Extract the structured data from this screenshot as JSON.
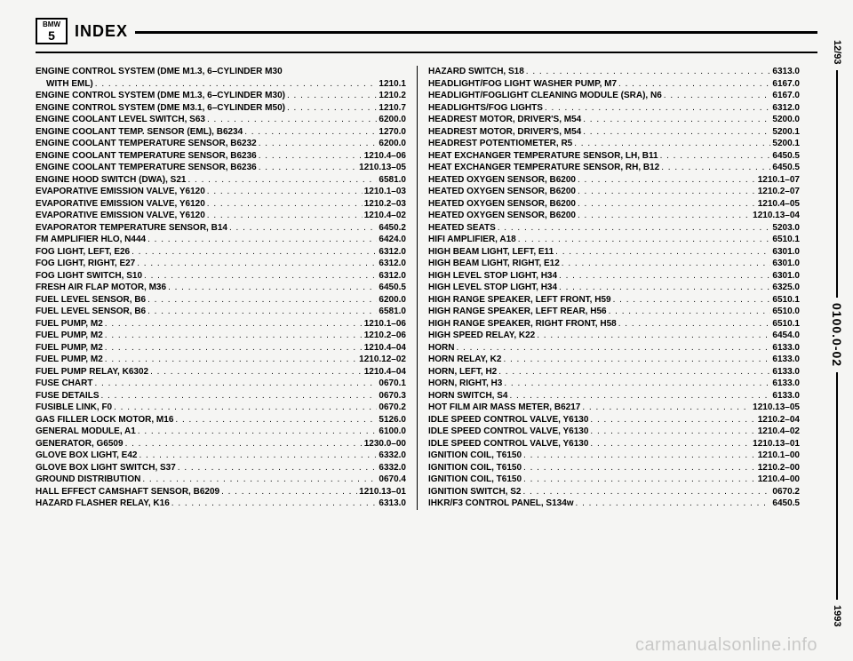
{
  "header": {
    "logo_top": "BMW",
    "logo_bot": "5",
    "title": "INDEX"
  },
  "side": {
    "top": "12/93",
    "mid": "0100.0-02",
    "bot": "1993"
  },
  "watermark": "carmanualsonline.info",
  "left": [
    {
      "label": "ENGINE CONTROL SYSTEM (DME M1.3, 6–CYLINDER M30",
      "ref": "",
      "nodots": true
    },
    {
      "label": "WITH EML)",
      "ref": "1210.1",
      "indent": true
    },
    {
      "label": "ENGINE CONTROL SYSTEM (DME M1.3, 6–CYLINDER M30)",
      "ref": "1210.2"
    },
    {
      "label": "ENGINE CONTROL SYSTEM (DME M3.1, 6–CYLINDER M50)",
      "ref": "1210.7"
    },
    {
      "label": "ENGINE COOLANT LEVEL SWITCH, S63",
      "ref": "6200.0"
    },
    {
      "label": "ENGINE COOLANT TEMP. SENSOR (EML), B6234",
      "ref": "1270.0"
    },
    {
      "label": "ENGINE COOLANT TEMPERATURE SENSOR, B6232",
      "ref": "6200.0"
    },
    {
      "label": "ENGINE COOLANT TEMPERATURE SENSOR, B6236",
      "ref": "1210.4–06"
    },
    {
      "label": "ENGINE COOLANT TEMPERATURE SENSOR, B6236",
      "ref": "1210.13–05"
    },
    {
      "label": "ENGINE HOOD SWITCH (DWA), S21",
      "ref": "6581.0"
    },
    {
      "label": "EVAPORATIVE EMISSION VALVE, Y6120",
      "ref": "1210.1–03"
    },
    {
      "label": "EVAPORATIVE EMISSION VALVE, Y6120",
      "ref": "1210.2–03"
    },
    {
      "label": "EVAPORATIVE EMISSION VALVE, Y6120",
      "ref": "1210.4–02"
    },
    {
      "label": "EVAPORATOR TEMPERATURE SENSOR, B14",
      "ref": "6450.2"
    },
    {
      "label": "FM AMPLIFIER HLO, N444",
      "ref": "6424.0"
    },
    {
      "label": "FOG LIGHT, LEFT, E26",
      "ref": "6312.0"
    },
    {
      "label": "FOG LIGHT, RIGHT, E27",
      "ref": "6312.0"
    },
    {
      "label": "FOG LIGHT SWITCH, S10",
      "ref": "6312.0"
    },
    {
      "label": "FRESH AIR FLAP MOTOR, M36",
      "ref": "6450.5"
    },
    {
      "label": "FUEL LEVEL SENSOR, B6",
      "ref": "6200.0"
    },
    {
      "label": "FUEL LEVEL SENSOR, B6",
      "ref": "6581.0"
    },
    {
      "label": "FUEL PUMP, M2",
      "ref": "1210.1–06"
    },
    {
      "label": "FUEL PUMP, M2",
      "ref": "1210.2–06"
    },
    {
      "label": "FUEL PUMP, M2",
      "ref": "1210.4–04"
    },
    {
      "label": "FUEL PUMP, M2",
      "ref": "1210.12–02"
    },
    {
      "label": "FUEL PUMP RELAY, K6302",
      "ref": "1210.4–04"
    },
    {
      "label": "FUSE CHART",
      "ref": "0670.1"
    },
    {
      "label": "FUSE DETAILS",
      "ref": "0670.3"
    },
    {
      "label": "FUSIBLE LINK, F0",
      "ref": "0670.2"
    },
    {
      "label": "GAS FILLER LOCK MOTOR, M16",
      "ref": "5126.0"
    },
    {
      "label": "GENERAL MODULE, A1",
      "ref": "6100.0"
    },
    {
      "label": "GENERATOR, G6509",
      "ref": "1230.0–00"
    },
    {
      "label": "GLOVE BOX LIGHT, E42",
      "ref": "6332.0"
    },
    {
      "label": "GLOVE BOX LIGHT SWITCH, S37",
      "ref": "6332.0"
    },
    {
      "label": "GROUND DISTRIBUTION",
      "ref": "0670.4"
    },
    {
      "label": "HALL EFFECT CAMSHAFT SENSOR, B6209",
      "ref": "1210.13–01"
    },
    {
      "label": "HAZARD FLASHER RELAY, K16",
      "ref": "6313.0"
    }
  ],
  "right": [
    {
      "label": "HAZARD SWITCH, S18",
      "ref": "6313.0"
    },
    {
      "label": "HEADLIGHT/FOG LIGHT WASHER PUMP, M7",
      "ref": "6167.0"
    },
    {
      "label": "HEADLIGHT/FOGLIGHT CLEANING MODULE (SRA), N6",
      "ref": "6167.0"
    },
    {
      "label": "HEADLIGHTS/FOG LIGHTS",
      "ref": "6312.0"
    },
    {
      "label": "HEADREST MOTOR, DRIVER'S, M54",
      "ref": "5200.0"
    },
    {
      "label": "HEADREST MOTOR, DRIVER'S, M54",
      "ref": "5200.1"
    },
    {
      "label": "HEADREST POTENTIOMETER, R5",
      "ref": "5200.1"
    },
    {
      "label": "HEAT EXCHANGER TEMPERATURE SENSOR, LH, B11",
      "ref": "6450.5"
    },
    {
      "label": "HEAT EXCHANGER TEMPERATURE SENSOR, RH, B12",
      "ref": "6450.5"
    },
    {
      "label": "HEATED OXYGEN SENSOR, B6200",
      "ref": "1210.1–07"
    },
    {
      "label": "HEATED OXYGEN SENSOR, B6200",
      "ref": "1210.2–07"
    },
    {
      "label": "HEATED OXYGEN SENSOR, B6200",
      "ref": "1210.4–05"
    },
    {
      "label": "HEATED OXYGEN SENSOR, B6200",
      "ref": "1210.13–04"
    },
    {
      "label": "HEATED SEATS",
      "ref": "5203.0"
    },
    {
      "label": "HIFI AMPLIFIER, A18",
      "ref": "6510.1"
    },
    {
      "label": "HIGH BEAM LIGHT, LEFT, E11",
      "ref": "6301.0"
    },
    {
      "label": "HIGH BEAM LIGHT, RIGHT, E12",
      "ref": "6301.0"
    },
    {
      "label": "HIGH LEVEL STOP LIGHT, H34",
      "ref": "6301.0"
    },
    {
      "label": "HIGH LEVEL STOP LIGHT, H34",
      "ref": "6325.0"
    },
    {
      "label": "HIGH RANGE SPEAKER, LEFT FRONT, H59",
      "ref": "6510.1"
    },
    {
      "label": "HIGH RANGE SPEAKER, LEFT REAR, H56",
      "ref": "6510.0"
    },
    {
      "label": "HIGH RANGE SPEAKER, RIGHT FRONT, H58",
      "ref": "6510.1"
    },
    {
      "label": "HIGH SPEED RELAY, K22",
      "ref": "6454.0"
    },
    {
      "label": "HORN",
      "ref": "6133.0"
    },
    {
      "label": "HORN RELAY, K2",
      "ref": "6133.0"
    },
    {
      "label": "HORN, LEFT, H2",
      "ref": "6133.0"
    },
    {
      "label": "HORN, RIGHT, H3",
      "ref": "6133.0"
    },
    {
      "label": "HORN SWITCH, S4",
      "ref": "6133.0"
    },
    {
      "label": "HOT FILM AIR MASS METER, B6217",
      "ref": "1210.13–05"
    },
    {
      "label": "IDLE SPEED CONTROL VALVE, Y6130",
      "ref": "1210.2–04"
    },
    {
      "label": "IDLE SPEED CONTROL VALVE, Y6130",
      "ref": "1210.4–02"
    },
    {
      "label": "IDLE SPEED CONTROL VALVE, Y6130",
      "ref": "1210.13–01"
    },
    {
      "label": "IGNITION COIL, T6150",
      "ref": "1210.1–00"
    },
    {
      "label": "IGNITION COIL, T6150",
      "ref": "1210.2–00"
    },
    {
      "label": "IGNITION COIL, T6150",
      "ref": "1210.4–00"
    },
    {
      "label": "IGNITION SWITCH, S2",
      "ref": "0670.2"
    },
    {
      "label": "IHKR/F3 CONTROL PANEL, S134w",
      "ref": "6450.5"
    }
  ]
}
